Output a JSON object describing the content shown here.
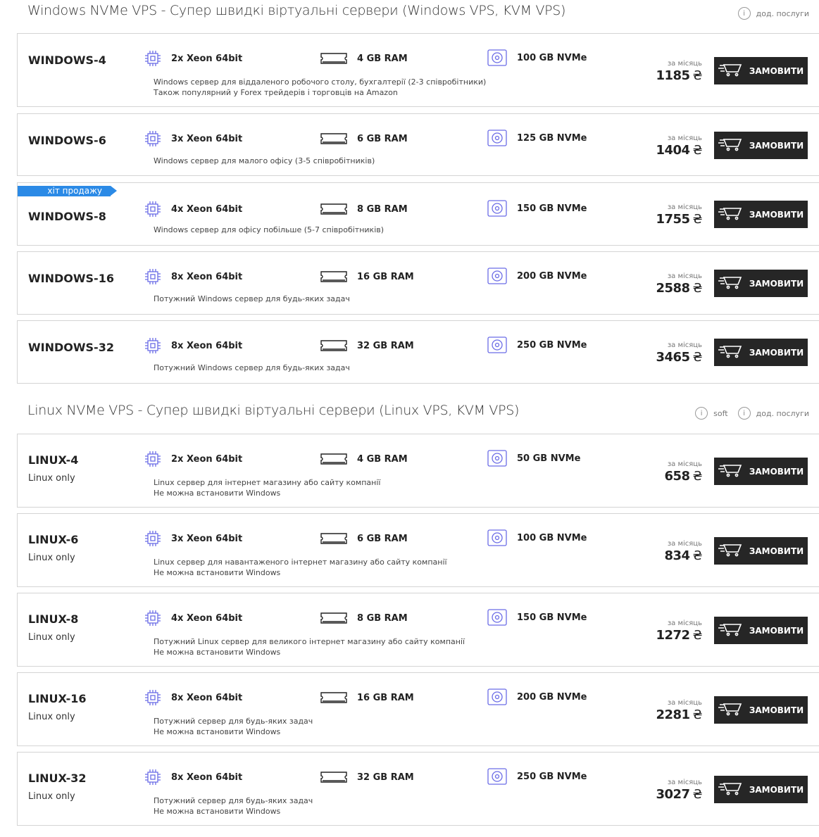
{
  "colors": {
    "accent": "#6b6ce6",
    "badge": "#2b8ae6",
    "button": "#262626"
  },
  "common": {
    "price_label": "за місяць",
    "currency": "₴",
    "order_label": "ЗАМОВИТИ"
  },
  "sections": [
    {
      "title": "Windows NVMe VPS - Супер швидкі віртуальні сервери (Windows VPS, KVM VPS)",
      "links": [
        {
          "label": "дод. послуги",
          "icon": "info-icon"
        }
      ],
      "plans": [
        {
          "name": "WINDOWS-4",
          "cpu": "2x Xeon 64bit",
          "ram": "4 GB RAM",
          "disk": "100 GB NVMe",
          "desc": [
            "Windows сервер для віддаленого робочого столу, бухгалтерії (2-3 співробітники)",
            "Також популярний у Forex трейдерів і торговців на Amazon"
          ],
          "price": "1185"
        },
        {
          "name": "WINDOWS-6",
          "cpu": "3x Xeon 64bit",
          "ram": "6 GB RAM",
          "disk": "125 GB NVMe",
          "desc": [
            "Windows сервер для малого офісу (3-5 співробітників)"
          ],
          "price": "1404"
        },
        {
          "name": "WINDOWS-8",
          "badge": "хіт продажу",
          "cpu": "4x Xeon 64bit",
          "ram": "8 GB RAM",
          "disk": "150 GB NVMe",
          "desc": [
            "Windows сервер для офісу побільше (5-7 співробітників)"
          ],
          "price": "1755"
        },
        {
          "name": "WINDOWS-16",
          "cpu": "8x Xeon 64bit",
          "ram": "16 GB RAM",
          "disk": "200 GB NVMe",
          "desc": [
            "Потужний Windows сервер для будь-яких задач"
          ],
          "price": "2588"
        },
        {
          "name": "WINDOWS-32",
          "cpu": "8x Xeon 64bit",
          "ram": "32 GB RAM",
          "disk": "250 GB NVMe",
          "desc": [
            "Потужний Windows сервер для будь-яких задач"
          ],
          "price": "3465"
        }
      ]
    },
    {
      "title": "Linux NVMe VPS - Супер швидкі віртуальні сервери (Linux VPS, KVM VPS)",
      "links": [
        {
          "label": "soft",
          "icon": "info-icon"
        },
        {
          "label": "дод. послуги",
          "icon": "info-icon"
        }
      ],
      "plans": [
        {
          "name": "LINUX-4",
          "sub": "Linux only",
          "cpu": "2x Xeon 64bit",
          "ram": "4 GB RAM",
          "disk": "50 GB NVMe",
          "desc": [
            "Linux сервер для інтернет магазину або сайту компанії",
            "Не можна встановити Windows"
          ],
          "price": "658"
        },
        {
          "name": "LINUX-6",
          "sub": "Linux only",
          "cpu": "3x Xeon 64bit",
          "ram": "6 GB RAM",
          "disk": "100 GB NVMe",
          "desc": [
            "Linux сервер для навантаженого інтернет магазину або сайту компанії",
            "Не можна встановити Windows"
          ],
          "price": "834"
        },
        {
          "name": "LINUX-8",
          "sub": "Linux only",
          "cpu": "4x Xeon 64bit",
          "ram": "8 GB RAM",
          "disk": "150 GB NVMe",
          "desc": [
            "Потужний Linux сервер для великого інтернет магазину або сайту компанії",
            "Не можна встановити Windows"
          ],
          "price": "1272"
        },
        {
          "name": "LINUX-16",
          "sub": "Linux only",
          "cpu": "8x Xeon 64bit",
          "ram": "16 GB RAM",
          "disk": "200 GB NVMe",
          "desc": [
            "Потужний сервер для будь-яких задач",
            "Не можна встановити Windows"
          ],
          "price": "2281"
        },
        {
          "name": "LINUX-32",
          "sub": "Linux only",
          "cpu": "8x Xeon 64bit",
          "ram": "32 GB RAM",
          "disk": "250 GB NVMe",
          "desc": [
            "Потужний сервер для будь-яких задач",
            "Не можна встановити Windows"
          ],
          "price": "3027"
        }
      ]
    }
  ]
}
